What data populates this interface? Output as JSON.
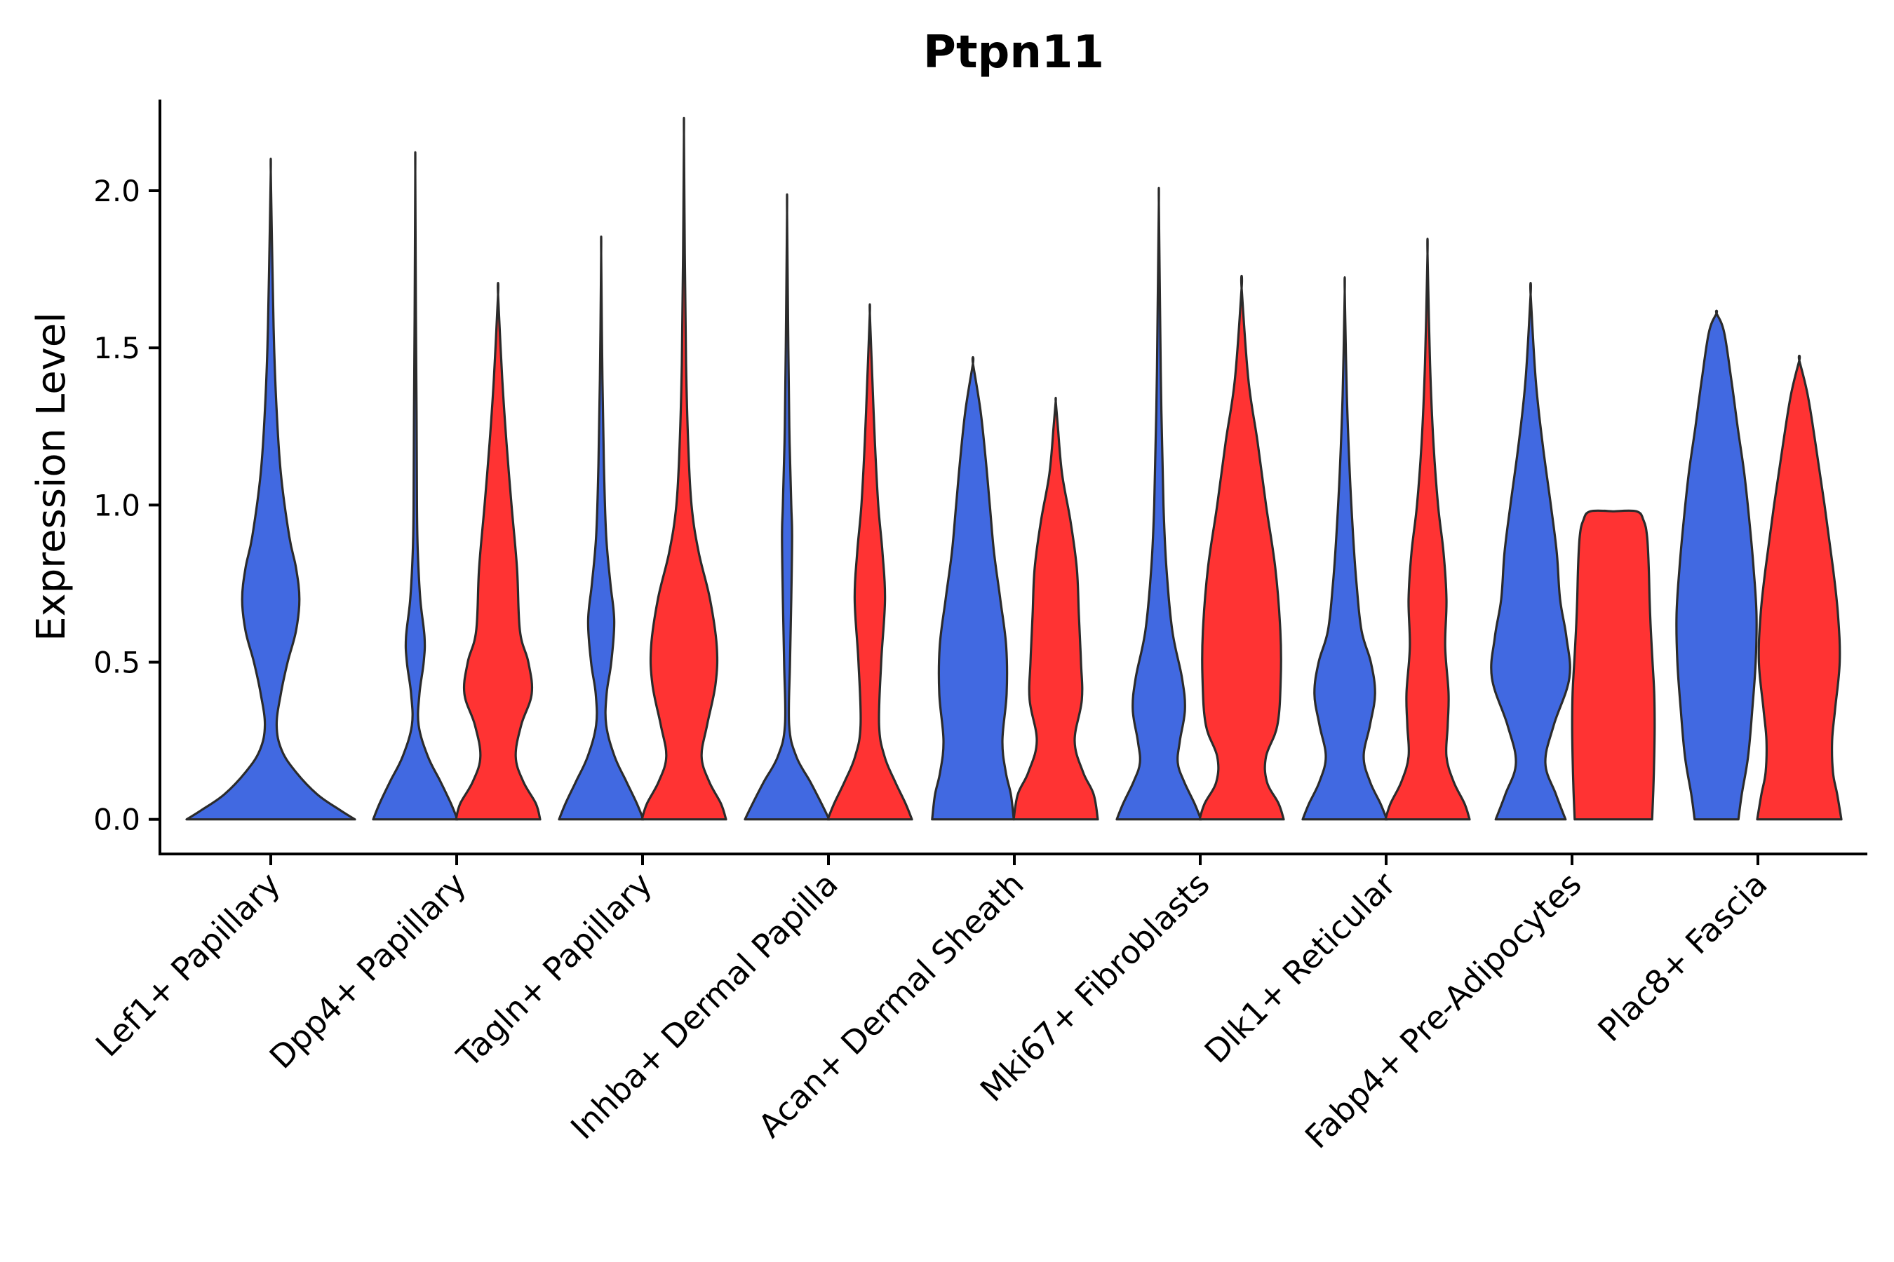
{
  "chart_data": {
    "type": "violin",
    "title": "Ptpn11",
    "ylabel": "Expression Level",
    "xlabel": "",
    "ylim": [
      -0.11,
      2.29
    ],
    "yticks": [
      0.0,
      0.5,
      1.0,
      1.5,
      2.0
    ],
    "ytick_labels": [
      "0.0",
      "0.5",
      "1.0",
      "1.5",
      "2.0"
    ],
    "split_colors": [
      "#4169E1",
      "#FF3333"
    ],
    "categories": [
      "Lef1+ Papillary",
      "Dpp4+ Papillary",
      "Tagln+ Papillary",
      "Inhba+ Dermal Papilla",
      "Acan+ Dermal Sheath",
      "Mki67+ Fibroblasts",
      "Dlk1+ Reticular",
      "Fabp4+ Pre-Adipocytes",
      "Plac8+ Fascia"
    ],
    "violins": [
      {
        "category": 0,
        "group": 0,
        "color": "#4169E1",
        "ymax": 2.06,
        "profile": [
          [
            0.0,
            1.0
          ],
          [
            0.03,
            0.82
          ],
          [
            0.08,
            0.55
          ],
          [
            0.15,
            0.3
          ],
          [
            0.22,
            0.13
          ],
          [
            0.3,
            0.07
          ],
          [
            0.4,
            0.12
          ],
          [
            0.5,
            0.2
          ],
          [
            0.6,
            0.3
          ],
          [
            0.7,
            0.34
          ],
          [
            0.8,
            0.3
          ],
          [
            0.9,
            0.22
          ],
          [
            1.1,
            0.12
          ],
          [
            1.3,
            0.07
          ],
          [
            1.5,
            0.04
          ],
          [
            1.75,
            0.02
          ],
          [
            2.06,
            0.0
          ]
        ]
      },
      {
        "category": 1,
        "group": 0,
        "color": "#4169E1",
        "ymax": 2.06,
        "profile": [
          [
            0.0,
            1.0
          ],
          [
            0.05,
            0.85
          ],
          [
            0.12,
            0.6
          ],
          [
            0.2,
            0.3
          ],
          [
            0.3,
            0.08
          ],
          [
            0.4,
            0.1
          ],
          [
            0.5,
            0.2
          ],
          [
            0.58,
            0.22
          ],
          [
            0.7,
            0.12
          ],
          [
            0.85,
            0.06
          ],
          [
            1.0,
            0.04
          ],
          [
            1.3,
            0.03
          ],
          [
            1.6,
            0.015
          ],
          [
            2.06,
            0.0
          ]
        ]
      },
      {
        "category": 1,
        "group": 1,
        "color": "#FF3333",
        "ymax": 1.67,
        "profile": [
          [
            0.0,
            1.0
          ],
          [
            0.05,
            0.9
          ],
          [
            0.12,
            0.6
          ],
          [
            0.2,
            0.42
          ],
          [
            0.3,
            0.55
          ],
          [
            0.4,
            0.8
          ],
          [
            0.5,
            0.72
          ],
          [
            0.6,
            0.52
          ],
          [
            0.8,
            0.45
          ],
          [
            1.0,
            0.32
          ],
          [
            1.2,
            0.2
          ],
          [
            1.4,
            0.1
          ],
          [
            1.67,
            0.0
          ]
        ]
      },
      {
        "category": 2,
        "group": 0,
        "color": "#4169E1",
        "ymax": 1.8,
        "profile": [
          [
            0.0,
            1.0
          ],
          [
            0.05,
            0.85
          ],
          [
            0.12,
            0.6
          ],
          [
            0.2,
            0.32
          ],
          [
            0.3,
            0.12
          ],
          [
            0.4,
            0.13
          ],
          [
            0.5,
            0.24
          ],
          [
            0.63,
            0.31
          ],
          [
            0.75,
            0.22
          ],
          [
            0.9,
            0.12
          ],
          [
            1.1,
            0.07
          ],
          [
            1.4,
            0.03
          ],
          [
            1.8,
            0.0
          ]
        ]
      },
      {
        "category": 2,
        "group": 1,
        "color": "#FF3333",
        "ymax": 2.18,
        "profile": [
          [
            0.0,
            1.0
          ],
          [
            0.05,
            0.88
          ],
          [
            0.12,
            0.6
          ],
          [
            0.2,
            0.42
          ],
          [
            0.3,
            0.55
          ],
          [
            0.43,
            0.75
          ],
          [
            0.55,
            0.78
          ],
          [
            0.7,
            0.62
          ],
          [
            0.85,
            0.35
          ],
          [
            1.0,
            0.18
          ],
          [
            1.2,
            0.1
          ],
          [
            1.45,
            0.05
          ],
          [
            1.8,
            0.02
          ],
          [
            2.18,
            0.0
          ]
        ]
      },
      {
        "category": 3,
        "group": 0,
        "color": "#4169E1",
        "ymax": 1.93,
        "profile": [
          [
            0.0,
            1.0
          ],
          [
            0.05,
            0.82
          ],
          [
            0.12,
            0.55
          ],
          [
            0.2,
            0.22
          ],
          [
            0.3,
            0.05
          ],
          [
            0.5,
            0.07
          ],
          [
            0.7,
            0.1
          ],
          [
            0.9,
            0.12
          ],
          [
            1.0,
            0.1
          ],
          [
            1.2,
            0.06
          ],
          [
            1.5,
            0.03
          ],
          [
            1.93,
            0.0
          ]
        ]
      },
      {
        "category": 3,
        "group": 1,
        "color": "#FF3333",
        "ymax": 1.61,
        "profile": [
          [
            0.0,
            1.0
          ],
          [
            0.05,
            0.85
          ],
          [
            0.12,
            0.6
          ],
          [
            0.2,
            0.35
          ],
          [
            0.3,
            0.22
          ],
          [
            0.5,
            0.27
          ],
          [
            0.7,
            0.36
          ],
          [
            0.85,
            0.3
          ],
          [
            1.0,
            0.2
          ],
          [
            1.2,
            0.12
          ],
          [
            1.4,
            0.06
          ],
          [
            1.61,
            0.0
          ]
        ]
      },
      {
        "category": 4,
        "group": 0,
        "color": "#4169E1",
        "ymax": 1.45,
        "profile": [
          [
            0.0,
            0.97
          ],
          [
            0.08,
            0.9
          ],
          [
            0.15,
            0.78
          ],
          [
            0.25,
            0.7
          ],
          [
            0.4,
            0.8
          ],
          [
            0.55,
            0.79
          ],
          [
            0.7,
            0.65
          ],
          [
            0.85,
            0.5
          ],
          [
            1.0,
            0.4
          ],
          [
            1.15,
            0.3
          ],
          [
            1.3,
            0.18
          ],
          [
            1.45,
            0.0
          ]
        ]
      },
      {
        "category": 4,
        "group": 1,
        "color": "#FF3333",
        "ymax": 1.33,
        "profile": [
          [
            0.0,
            1.0
          ],
          [
            0.08,
            0.9
          ],
          [
            0.15,
            0.65
          ],
          [
            0.25,
            0.45
          ],
          [
            0.38,
            0.62
          ],
          [
            0.5,
            0.6
          ],
          [
            0.65,
            0.55
          ],
          [
            0.8,
            0.5
          ],
          [
            0.95,
            0.35
          ],
          [
            1.1,
            0.15
          ],
          [
            1.25,
            0.05
          ],
          [
            1.33,
            0.0
          ]
        ]
      },
      {
        "category": 5,
        "group": 0,
        "color": "#4169E1",
        "ymax": 1.96,
        "profile": [
          [
            0.0,
            1.0
          ],
          [
            0.05,
            0.85
          ],
          [
            0.12,
            0.6
          ],
          [
            0.18,
            0.45
          ],
          [
            0.25,
            0.5
          ],
          [
            0.35,
            0.62
          ],
          [
            0.45,
            0.55
          ],
          [
            0.6,
            0.32
          ],
          [
            0.8,
            0.18
          ],
          [
            1.0,
            0.11
          ],
          [
            1.3,
            0.06
          ],
          [
            1.6,
            0.03
          ],
          [
            1.96,
            0.0
          ]
        ]
      },
      {
        "category": 5,
        "group": 1,
        "color": "#FF3333",
        "ymax": 1.69,
        "profile": [
          [
            0.0,
            1.0
          ],
          [
            0.05,
            0.88
          ],
          [
            0.12,
            0.6
          ],
          [
            0.2,
            0.58
          ],
          [
            0.3,
            0.85
          ],
          [
            0.45,
            0.93
          ],
          [
            0.6,
            0.92
          ],
          [
            0.8,
            0.8
          ],
          [
            1.0,
            0.58
          ],
          [
            1.2,
            0.38
          ],
          [
            1.4,
            0.16
          ],
          [
            1.69,
            0.0
          ]
        ]
      },
      {
        "category": 6,
        "group": 0,
        "color": "#4169E1",
        "ymax": 1.68,
        "profile": [
          [
            0.0,
            1.0
          ],
          [
            0.05,
            0.85
          ],
          [
            0.12,
            0.6
          ],
          [
            0.2,
            0.45
          ],
          [
            0.3,
            0.6
          ],
          [
            0.4,
            0.72
          ],
          [
            0.5,
            0.62
          ],
          [
            0.6,
            0.4
          ],
          [
            0.75,
            0.28
          ],
          [
            0.9,
            0.2
          ],
          [
            1.1,
            0.12
          ],
          [
            1.35,
            0.05
          ],
          [
            1.68,
            0.0
          ]
        ]
      },
      {
        "category": 6,
        "group": 1,
        "color": "#FF3333",
        "ymax": 1.8,
        "profile": [
          [
            0.0,
            1.0
          ],
          [
            0.05,
            0.88
          ],
          [
            0.12,
            0.62
          ],
          [
            0.2,
            0.45
          ],
          [
            0.3,
            0.48
          ],
          [
            0.4,
            0.5
          ],
          [
            0.55,
            0.42
          ],
          [
            0.7,
            0.45
          ],
          [
            0.85,
            0.38
          ],
          [
            1.0,
            0.25
          ],
          [
            1.2,
            0.14
          ],
          [
            1.45,
            0.06
          ],
          [
            1.8,
            0.0
          ]
        ]
      },
      {
        "category": 7,
        "group": 0,
        "color": "#4169E1",
        "ymax": 1.67,
        "profile": [
          [
            0.0,
            0.83
          ],
          [
            0.08,
            0.6
          ],
          [
            0.18,
            0.35
          ],
          [
            0.3,
            0.55
          ],
          [
            0.45,
            0.92
          ],
          [
            0.58,
            0.85
          ],
          [
            0.7,
            0.7
          ],
          [
            0.85,
            0.62
          ],
          [
            1.0,
            0.48
          ],
          [
            1.2,
            0.28
          ],
          [
            1.4,
            0.12
          ],
          [
            1.67,
            0.0
          ]
        ]
      },
      {
        "category": 7,
        "group": 1,
        "color": "#FF3333",
        "ymax": 0.98,
        "profile": [
          [
            0.0,
            0.92
          ],
          [
            0.1,
            0.95
          ],
          [
            0.2,
            0.97
          ],
          [
            0.3,
            0.98
          ],
          [
            0.4,
            0.97
          ],
          [
            0.5,
            0.93
          ],
          [
            0.6,
            0.89
          ],
          [
            0.7,
            0.86
          ],
          [
            0.8,
            0.84
          ],
          [
            0.9,
            0.8
          ],
          [
            0.95,
            0.72
          ],
          [
            0.98,
            0.55
          ],
          [
            0.98,
            0.0
          ]
        ]
      },
      {
        "category": 8,
        "group": 0,
        "color": "#4169E1",
        "ymax": 1.61,
        "profile": [
          [
            0.0,
            0.52
          ],
          [
            0.08,
            0.6
          ],
          [
            0.2,
            0.75
          ],
          [
            0.35,
            0.85
          ],
          [
            0.5,
            0.93
          ],
          [
            0.65,
            0.95
          ],
          [
            0.8,
            0.88
          ],
          [
            0.95,
            0.78
          ],
          [
            1.1,
            0.66
          ],
          [
            1.25,
            0.5
          ],
          [
            1.4,
            0.35
          ],
          [
            1.55,
            0.18
          ],
          [
            1.61,
            0.0
          ]
        ]
      },
      {
        "category": 8,
        "group": 1,
        "color": "#FF3333",
        "ymax": 1.46,
        "profile": [
          [
            0.0,
            1.0
          ],
          [
            0.08,
            0.9
          ],
          [
            0.15,
            0.8
          ],
          [
            0.25,
            0.78
          ],
          [
            0.35,
            0.85
          ],
          [
            0.5,
            0.96
          ],
          [
            0.65,
            0.92
          ],
          [
            0.8,
            0.8
          ],
          [
            1.0,
            0.6
          ],
          [
            1.2,
            0.38
          ],
          [
            1.35,
            0.2
          ],
          [
            1.46,
            0.0
          ]
        ]
      }
    ]
  }
}
